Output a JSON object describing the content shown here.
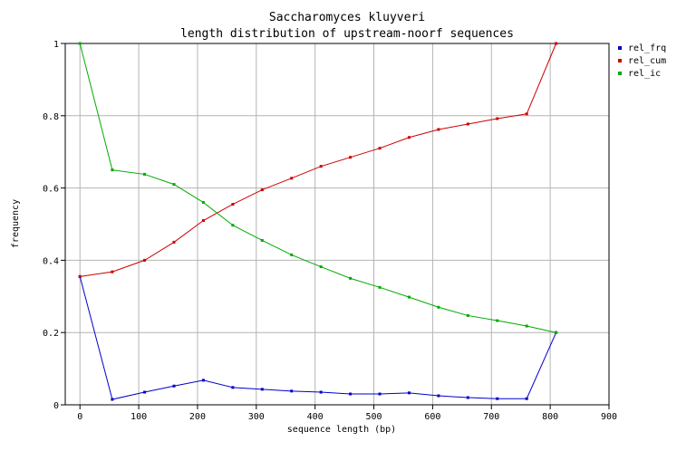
{
  "chart_data": {
    "type": "line",
    "title": "Saccharomyces kluyveri",
    "subtitle": "length distribution of upstream-noorf sequences",
    "xlabel": "sequence length (bp)",
    "ylabel": "frequency",
    "xlim": [
      -25,
      900
    ],
    "ylim": [
      0,
      1
    ],
    "xticks": [
      0,
      100,
      200,
      300,
      400,
      500,
      600,
      700,
      800,
      900
    ],
    "yticks": [
      0,
      0.2,
      0.4,
      0.6,
      0.8,
      1
    ],
    "ytick_labels": [
      "0",
      "0.2",
      "0.4",
      "0.6",
      "0.8",
      "1"
    ],
    "grid": true,
    "legend_position": "top-right",
    "x": [
      0,
      55,
      110,
      160,
      210,
      260,
      310,
      360,
      410,
      460,
      510,
      560,
      610,
      660,
      710,
      760,
      810
    ],
    "series": [
      {
        "name": "rel_frq",
        "color": "#0000cc",
        "values": [
          0.355,
          0.015,
          0.035,
          0.052,
          0.068,
          0.048,
          0.043,
          0.038,
          0.035,
          0.03,
          0.03,
          0.033,
          0.025,
          0.02,
          0.017,
          0.017,
          0.2
        ]
      },
      {
        "name": "rel_cum",
        "color": "#cc0000",
        "values": [
          0.355,
          0.368,
          0.4,
          0.45,
          0.51,
          0.555,
          0.595,
          0.627,
          0.66,
          0.685,
          0.71,
          0.74,
          0.762,
          0.777,
          0.792,
          0.805,
          1.0
        ]
      },
      {
        "name": "rel_ic",
        "color": "#00aa00",
        "values": [
          1.0,
          0.65,
          0.638,
          0.61,
          0.56,
          0.497,
          0.455,
          0.415,
          0.382,
          0.35,
          0.325,
          0.298,
          0.27,
          0.247,
          0.233,
          0.218,
          0.2
        ]
      }
    ]
  }
}
